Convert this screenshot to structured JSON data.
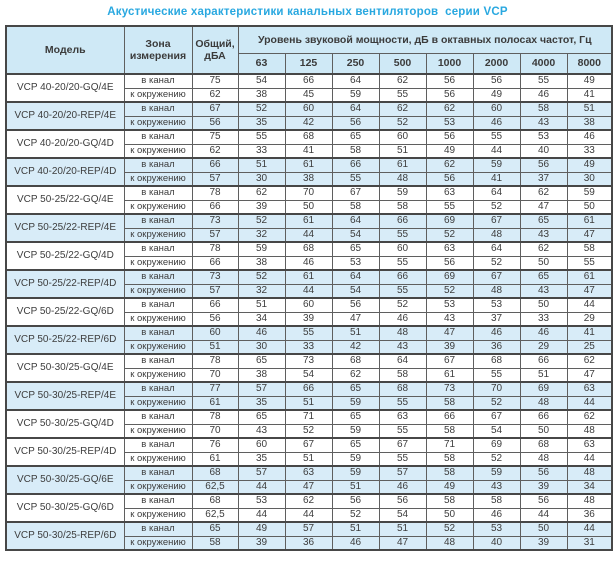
{
  "title": "Акустические характеристики канальных вентиляторов  серии VCP",
  "colors": {
    "title_blue": "#29a8e0",
    "header_bg": "#cfe9f6",
    "band_bg": "#d8ecf8",
    "border": "#474747"
  },
  "table": {
    "headers": {
      "model": "Модель",
      "zone": "Зона измерения",
      "total": "Общий, дБА",
      "spectrum": "Уровень звуковой мощности, дБ в октавных полосах частот, Гц"
    },
    "frequencies": [
      "63",
      "125",
      "250",
      "500",
      "1000",
      "2000",
      "4000",
      "8000"
    ]
  },
  "zones": [
    "в канал",
    "к окружению"
  ],
  "rows": [
    {
      "model": "VCP 40-20/20-GQ/4E",
      "shaded": false,
      "duct": {
        "total": "75",
        "levels": [
          54,
          66,
          64,
          62,
          56,
          56,
          55,
          49
        ]
      },
      "ambient": {
        "total": "62",
        "levels": [
          38,
          45,
          59,
          55,
          56,
          49,
          46,
          41
        ]
      }
    },
    {
      "model": "VCP 40-20/20-REP/4E",
      "shaded": true,
      "duct": {
        "total": "67",
        "levels": [
          52,
          60,
          64,
          62,
          62,
          60,
          58,
          51
        ]
      },
      "ambient": {
        "total": "56",
        "levels": [
          35,
          42,
          56,
          52,
          53,
          46,
          43,
          38
        ]
      }
    },
    {
      "model": "VCP 40-20/20-GQ/4D",
      "shaded": false,
      "duct": {
        "total": "75",
        "levels": [
          55,
          68,
          65,
          60,
          56,
          55,
          53,
          46
        ]
      },
      "ambient": {
        "total": "62",
        "levels": [
          33,
          41,
          58,
          51,
          49,
          44,
          40,
          33
        ]
      }
    },
    {
      "model": "VCP 40-20/20-REP/4D",
      "shaded": true,
      "duct": {
        "total": "66",
        "levels": [
          51,
          61,
          66,
          61,
          62,
          59,
          56,
          49
        ]
      },
      "ambient": {
        "total": "57",
        "levels": [
          30,
          38,
          55,
          48,
          56,
          41,
          37,
          30
        ]
      }
    },
    {
      "model": "VCP 50-25/22-GQ/4E",
      "shaded": false,
      "duct": {
        "total": "78",
        "levels": [
          62,
          70,
          67,
          59,
          63,
          64,
          62,
          59
        ]
      },
      "ambient": {
        "total": "66",
        "levels": [
          39,
          50,
          58,
          58,
          55,
          52,
          47,
          50
        ]
      }
    },
    {
      "model": "VCP 50-25/22-REP/4E",
      "shaded": true,
      "duct": {
        "total": "73",
        "levels": [
          52,
          61,
          64,
          66,
          69,
          67,
          65,
          61
        ]
      },
      "ambient": {
        "total": "57",
        "levels": [
          32,
          44,
          54,
          55,
          52,
          48,
          43,
          47
        ]
      }
    },
    {
      "model": "VCP 50-25/22-GQ/4D",
      "shaded": false,
      "duct": {
        "total": "78",
        "levels": [
          59,
          68,
          65,
          60,
          63,
          64,
          62,
          58
        ]
      },
      "ambient": {
        "total": "66",
        "levels": [
          38,
          46,
          53,
          55,
          56,
          52,
          50,
          55
        ]
      }
    },
    {
      "model": "VCP 50-25/22-REP/4D",
      "shaded": true,
      "duct": {
        "total": "73",
        "levels": [
          52,
          61,
          64,
          66,
          69,
          67,
          65,
          61
        ]
      },
      "ambient": {
        "total": "57",
        "levels": [
          32,
          44,
          54,
          55,
          52,
          48,
          43,
          47
        ]
      }
    },
    {
      "model": "VCP 50-25/22-GQ/6D",
      "shaded": false,
      "duct": {
        "total": "66",
        "levels": [
          51,
          60,
          56,
          52,
          53,
          53,
          50,
          44
        ]
      },
      "ambient": {
        "total": "56",
        "levels": [
          34,
          39,
          47,
          46,
          43,
          37,
          33,
          29
        ]
      }
    },
    {
      "model": "VCP 50-25/22-REP/6D",
      "shaded": true,
      "duct": {
        "total": "60",
        "levels": [
          46,
          55,
          51,
          48,
          47,
          46,
          46,
          41
        ]
      },
      "ambient": {
        "total": "51",
        "levels": [
          30,
          33,
          42,
          43,
          39,
          36,
          29,
          25
        ]
      }
    },
    {
      "model": "VCP 50-30/25-GQ/4E",
      "shaded": false,
      "duct": {
        "total": "78",
        "levels": [
          65,
          73,
          68,
          64,
          67,
          68,
          66,
          62
        ]
      },
      "ambient": {
        "total": "70",
        "levels": [
          38,
          54,
          62,
          58,
          61,
          55,
          51,
          47
        ]
      }
    },
    {
      "model": "VCP 50-30/25-REP/4E",
      "shaded": true,
      "duct": {
        "total": "77",
        "levels": [
          57,
          66,
          65,
          68,
          73,
          70,
          69,
          63
        ]
      },
      "ambient": {
        "total": "61",
        "levels": [
          35,
          51,
          59,
          55,
          58,
          52,
          48,
          44
        ]
      }
    },
    {
      "model": "VCP 50-30/25-GQ/4D",
      "shaded": false,
      "duct": {
        "total": "78",
        "levels": [
          65,
          71,
          65,
          63,
          66,
          67,
          66,
          62
        ]
      },
      "ambient": {
        "total": "70",
        "levels": [
          43,
          52,
          59,
          55,
          58,
          54,
          50,
          48
        ]
      }
    },
    {
      "model": "VCP 50-30/25-REP/4D",
      "shaded": false,
      "duct": {
        "total": "76",
        "levels": [
          60,
          67,
          65,
          67,
          71,
          69,
          68,
          63
        ]
      },
      "ambient": {
        "total": "61",
        "levels": [
          35,
          51,
          59,
          55,
          58,
          52,
          48,
          44
        ]
      }
    },
    {
      "model": "VCP 50-30/25-GQ/6E",
      "shaded": true,
      "duct": {
        "total": "68",
        "levels": [
          57,
          63,
          59,
          57,
          58,
          59,
          56,
          48
        ]
      },
      "ambient": {
        "total": "62,5",
        "levels": [
          44,
          47,
          51,
          46,
          49,
          43,
          39,
          34
        ]
      }
    },
    {
      "model": "VCP 50-30/25-GQ/6D",
      "shaded": false,
      "duct": {
        "total": "68",
        "levels": [
          53,
          62,
          56,
          56,
          58,
          58,
          56,
          48
        ]
      },
      "ambient": {
        "total": "62,5",
        "levels": [
          44,
          44,
          52,
          54,
          50,
          46,
          44,
          36
        ]
      }
    },
    {
      "model": "VCP 50-30/25-REP/6D",
      "shaded": true,
      "duct": {
        "total": "65",
        "levels": [
          49,
          57,
          51,
          51,
          52,
          53,
          50,
          44
        ]
      },
      "ambient": {
        "total": "58",
        "levels": [
          39,
          36,
          46,
          47,
          48,
          40,
          39,
          31
        ]
      }
    }
  ]
}
